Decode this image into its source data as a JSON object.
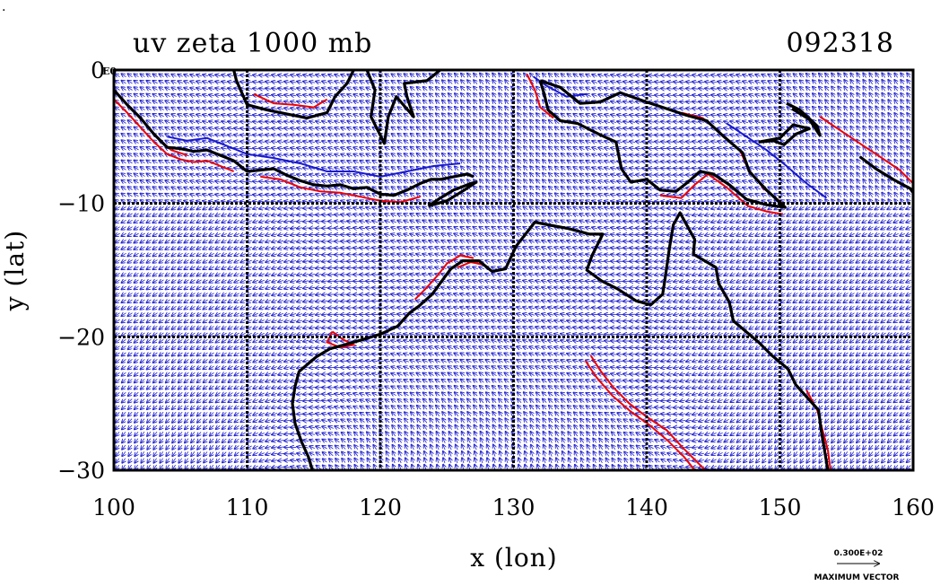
{
  "figure": {
    "title_left": "uv zeta 1000 mb",
    "title_right": "092318",
    "corner_marks": [
      "."
    ]
  },
  "colors": {
    "vector": "#1f1fd0",
    "positive_contour": "#ee0000",
    "negative_contour": "#1a1acc",
    "coast": "#000000",
    "grid": "#000000"
  },
  "vector_key": {
    "magnitude_label": "0.300E+02",
    "caption": "MAXIMUM VECTOR"
  },
  "chart_data": {
    "type": "vector_field",
    "xlabel": "x (lon)",
    "ylabel": "y (lat)",
    "xlim": [
      100,
      160
    ],
    "ylim": [
      -30,
      0
    ],
    "x_ticks": [
      100,
      110,
      120,
      130,
      140,
      150,
      160
    ],
    "y_ticks": [
      {
        "value": 0,
        "label": "0"
      },
      {
        "value": -10,
        "label": "−10"
      },
      {
        "value": -20,
        "label": "−20"
      },
      {
        "value": -30,
        "label": "−30"
      }
    ],
    "y_axis_exponent": "E0",
    "grid": true,
    "coastlines": [
      {
        "name": "sumatra",
        "points": [
          [
            100,
            -1.5
          ],
          [
            101,
            -2.6
          ],
          [
            102,
            -3.6
          ],
          [
            103,
            -4.8
          ],
          [
            104,
            -5.8
          ],
          [
            105,
            -5.9
          ],
          [
            106,
            -6.1
          ],
          [
            107,
            -6.0
          ],
          [
            108,
            -6.4
          ],
          [
            109,
            -6.8
          ],
          [
            110,
            -7.6
          ],
          [
            111,
            -7.5
          ],
          [
            112,
            -7.4
          ],
          [
            113,
            -7.9
          ],
          [
            114,
            -8.3
          ],
          [
            115,
            -8.6
          ],
          [
            116,
            -8.7
          ],
          [
            117,
            -8.6
          ],
          [
            118,
            -8.9
          ],
          [
            119,
            -8.8
          ],
          [
            120,
            -9.3
          ],
          [
            121,
            -9.4
          ],
          [
            122,
            -9.0
          ],
          [
            123,
            -8.5
          ],
          [
            123.8,
            -8.2
          ],
          [
            124.5,
            -8.2
          ],
          [
            125.5,
            -8.0
          ],
          [
            126.5,
            -7.8
          ],
          [
            127,
            -8.0
          ]
        ]
      },
      {
        "name": "borneo",
        "points": [
          [
            109,
            0
          ],
          [
            109.2,
            -0.8
          ],
          [
            110,
            -2.6
          ],
          [
            111.5,
            -3.0
          ],
          [
            113,
            -3.3
          ],
          [
            114.5,
            -3.6
          ],
          [
            116,
            -3.2
          ],
          [
            116.6,
            -2.0
          ],
          [
            117.5,
            -1.0
          ],
          [
            118,
            0
          ]
        ]
      },
      {
        "name": "sulawesi",
        "points": [
          [
            119,
            0
          ],
          [
            119.6,
            -1.5
          ],
          [
            119.3,
            -3.5
          ],
          [
            120.3,
            -5.5
          ],
          [
            120.6,
            -3.5
          ],
          [
            121.2,
            -2.0
          ],
          [
            122.5,
            -3.5
          ],
          [
            122.0,
            -2.0
          ],
          [
            121.8,
            -1.0
          ],
          [
            123.5,
            -0.8
          ],
          [
            124.5,
            0
          ]
        ]
      },
      {
        "name": "timor",
        "points": [
          [
            123.6,
            -10.2
          ],
          [
            124.5,
            -9.6
          ],
          [
            125.5,
            -9.0
          ],
          [
            126.8,
            -8.5
          ],
          [
            127.2,
            -8.4
          ],
          [
            126.3,
            -9.0
          ],
          [
            125.0,
            -9.8
          ],
          [
            123.6,
            -10.2
          ]
        ]
      },
      {
        "name": "new_guinea",
        "points": [
          [
            132,
            -0.8
          ],
          [
            133.5,
            -1.3
          ],
          [
            135,
            -2.5
          ],
          [
            136.5,
            -2.4
          ],
          [
            138,
            -1.7
          ],
          [
            140,
            -2.4
          ],
          [
            141.5,
            -2.9
          ],
          [
            143,
            -3.4
          ],
          [
            144.5,
            -3.8
          ],
          [
            145.8,
            -5.0
          ],
          [
            147.2,
            -6.2
          ],
          [
            147.7,
            -7.6
          ],
          [
            149,
            -9.0
          ],
          [
            150.4,
            -10.3
          ],
          [
            149,
            -10.1
          ],
          [
            147.5,
            -9.7
          ],
          [
            146.2,
            -8.6
          ],
          [
            145,
            -7.8
          ],
          [
            144,
            -7.6
          ],
          [
            143.1,
            -8.4
          ],
          [
            142.2,
            -9.1
          ],
          [
            141,
            -9.0
          ],
          [
            140,
            -8.2
          ],
          [
            138.8,
            -8.4
          ],
          [
            138.1,
            -7.4
          ],
          [
            137.7,
            -5.4
          ],
          [
            136.4,
            -4.8
          ],
          [
            134.8,
            -4.0
          ],
          [
            133.5,
            -3.8
          ],
          [
            132.6,
            -3.0
          ],
          [
            132.3,
            -1.8
          ],
          [
            132,
            -0.8
          ]
        ]
      },
      {
        "name": "bismarck",
        "points": [
          [
            148.4,
            -5.4
          ],
          [
            149.5,
            -5.3
          ],
          [
            150.3,
            -5.6
          ],
          [
            151.2,
            -4.8
          ],
          [
            152.2,
            -4.4
          ],
          [
            151.0,
            -4.1
          ],
          [
            150.0,
            -5.1
          ],
          [
            148.4,
            -5.4
          ]
        ]
      },
      {
        "name": "new_ireland",
        "points": [
          [
            150.5,
            -2.5
          ],
          [
            151.5,
            -3.0
          ],
          [
            152.8,
            -4.2
          ],
          [
            153.0,
            -4.9
          ],
          [
            152.2,
            -3.7
          ],
          [
            150.9,
            -2.9
          ]
        ]
      },
      {
        "name": "solomons",
        "points": [
          [
            156,
            -6.5
          ],
          [
            157.2,
            -7.4
          ],
          [
            158.5,
            -8.2
          ],
          [
            159.8,
            -8.9
          ],
          [
            160,
            -9.2
          ]
        ]
      },
      {
        "name": "australia",
        "points": [
          [
            160,
            -31
          ],
          [
            153.6,
            -30
          ],
          [
            153.1,
            -27
          ],
          [
            152.9,
            -25.5
          ],
          [
            151.2,
            -23.6
          ],
          [
            150.6,
            -22.4
          ],
          [
            149.4,
            -21.4
          ],
          [
            148.4,
            -20.4
          ],
          [
            146.5,
            -18.8
          ],
          [
            146.2,
            -17.4
          ],
          [
            145.4,
            -16.0
          ],
          [
            145.2,
            -14.8
          ],
          [
            143.5,
            -13.8
          ],
          [
            143.6,
            -12.7
          ],
          [
            142.5,
            -10.7
          ],
          [
            142.0,
            -11.6
          ],
          [
            141.7,
            -13.4
          ],
          [
            141.4,
            -15.5
          ],
          [
            141.2,
            -16.8
          ],
          [
            140.3,
            -17.6
          ],
          [
            139.2,
            -17.3
          ],
          [
            137.8,
            -16.4
          ],
          [
            136.6,
            -15.8
          ],
          [
            135.5,
            -15.0
          ],
          [
            135.9,
            -13.9
          ],
          [
            136.7,
            -12.3
          ],
          [
            135.7,
            -12.3
          ],
          [
            134.2,
            -11.9
          ],
          [
            132.6,
            -11.6
          ],
          [
            131.6,
            -11.4
          ],
          [
            130.9,
            -12.3
          ],
          [
            130.2,
            -13.2
          ],
          [
            129.4,
            -14.9
          ],
          [
            128.4,
            -15.1
          ],
          [
            127.4,
            -14.3
          ],
          [
            126.2,
            -14.3
          ],
          [
            125.3,
            -14.9
          ],
          [
            124.7,
            -15.7
          ],
          [
            123.9,
            -16.8
          ],
          [
            122.9,
            -17.7
          ],
          [
            122.2,
            -18.2
          ],
          [
            121.3,
            -19.2
          ],
          [
            120.0,
            -19.8
          ],
          [
            118.7,
            -20.2
          ],
          [
            117.3,
            -20.6
          ],
          [
            116.2,
            -20.9
          ],
          [
            115.2,
            -21.5
          ],
          [
            114.6,
            -22.0
          ],
          [
            113.9,
            -22.6
          ],
          [
            113.6,
            -23.7
          ],
          [
            113.4,
            -25.0
          ],
          [
            113.6,
            -26.5
          ],
          [
            114.1,
            -27.9
          ],
          [
            114.6,
            -29.0
          ],
          [
            114.9,
            -30.0
          ],
          [
            115.2,
            -31
          ]
        ]
      }
    ],
    "contours": [
      {
        "sign": "positive",
        "points": [
          [
            100,
            -2.2
          ],
          [
            101,
            -3.2
          ],
          [
            102,
            -4.3
          ],
          [
            103,
            -5.4
          ],
          [
            104,
            -6.3
          ],
          [
            105,
            -6.7
          ],
          [
            106,
            -6.9
          ],
          [
            107,
            -6.8
          ],
          [
            108,
            -7.2
          ],
          [
            109,
            -7.6
          ]
        ]
      },
      {
        "sign": "positive",
        "points": [
          [
            100.3,
            -1.8
          ],
          [
            101.3,
            -2.9
          ],
          [
            102.3,
            -4.0
          ],
          [
            103.3,
            -5.1
          ],
          [
            104.3,
            -6.0
          ],
          [
            105.5,
            -6.4
          ]
        ]
      },
      {
        "sign": "positive",
        "points": [
          [
            111,
            -8.0
          ],
          [
            112.5,
            -8.2
          ],
          [
            114,
            -8.8
          ],
          [
            115.5,
            -9.1
          ],
          [
            117,
            -9.2
          ],
          [
            118.5,
            -9.5
          ],
          [
            120,
            -9.8
          ],
          [
            121.5,
            -9.9
          ],
          [
            123,
            -9.5
          ]
        ]
      },
      {
        "sign": "negative",
        "points": [
          [
            104,
            -5.0
          ],
          [
            105.5,
            -5.3
          ],
          [
            107,
            -5.1
          ],
          [
            108.5,
            -5.7
          ],
          [
            110,
            -6.3
          ],
          [
            112,
            -6.6
          ],
          [
            114,
            -7.0
          ],
          [
            116,
            -7.6
          ],
          [
            118,
            -7.6
          ],
          [
            120,
            -8.0
          ],
          [
            122,
            -7.6
          ],
          [
            124,
            -7.2
          ],
          [
            126,
            -7.0
          ]
        ]
      },
      {
        "sign": "positive",
        "points": [
          [
            127,
            -14.1
          ],
          [
            126,
            -13.9
          ],
          [
            125,
            -14.5
          ],
          [
            124.3,
            -15.4
          ],
          [
            123.4,
            -16.4
          ],
          [
            122.6,
            -17.2
          ]
        ]
      },
      {
        "sign": "positive",
        "points": [
          [
            127.8,
            -14.6
          ],
          [
            126.8,
            -14.4
          ],
          [
            125.8,
            -14.8
          ]
        ]
      },
      {
        "sign": "positive",
        "points": [
          [
            135.8,
            -21.4
          ],
          [
            136.5,
            -22.5
          ],
          [
            137.5,
            -23.8
          ],
          [
            138.7,
            -25.0
          ],
          [
            140,
            -26.0
          ],
          [
            141.5,
            -27.0
          ],
          [
            142.6,
            -28.2
          ],
          [
            143.8,
            -29.4
          ],
          [
            144.4,
            -30
          ]
        ]
      },
      {
        "sign": "positive",
        "points": [
          [
            135.4,
            -21.8
          ],
          [
            136.2,
            -23.0
          ],
          [
            137.4,
            -24.4
          ],
          [
            138.8,
            -25.6
          ],
          [
            140.2,
            -26.6
          ],
          [
            141.6,
            -27.8
          ],
          [
            142.8,
            -29.0
          ],
          [
            143.6,
            -30
          ]
        ]
      },
      {
        "sign": "positive",
        "points": [
          [
            152.0,
            -24.0
          ],
          [
            152.8,
            -25.5
          ],
          [
            153.2,
            -27.0
          ],
          [
            153.6,
            -28.5
          ],
          [
            153.8,
            -30
          ]
        ]
      },
      {
        "sign": "positive",
        "points": [
          [
            116.4,
            -19.6
          ],
          [
            117.2,
            -20.2
          ],
          [
            118.0,
            -20.6
          ],
          [
            117.0,
            -20.8
          ],
          [
            116.0,
            -20.4
          ],
          [
            116.4,
            -19.6
          ]
        ]
      },
      {
        "sign": "positive",
        "points": [
          [
            142.6,
            -3.2
          ],
          [
            144.2,
            -3.6
          ],
          [
            145.6,
            -4.8
          ],
          [
            147.0,
            -6.0
          ],
          [
            147.6,
            -7.4
          ],
          [
            148.8,
            -8.9
          ],
          [
            150.2,
            -10.0
          ]
        ]
      },
      {
        "sign": "positive",
        "points": [
          [
            141.0,
            -9.4
          ],
          [
            142.6,
            -9.6
          ],
          [
            143.6,
            -8.6
          ],
          [
            144.6,
            -7.8
          ],
          [
            146.0,
            -8.8
          ],
          [
            147.6,
            -10.2
          ],
          [
            149.0,
            -10.6
          ],
          [
            150.2,
            -10.8
          ]
        ]
      },
      {
        "sign": "positive",
        "points": [
          [
            153.0,
            -3.5
          ],
          [
            154.5,
            -4.5
          ],
          [
            156.0,
            -5.5
          ],
          [
            157.5,
            -6.5
          ],
          [
            159.0,
            -7.5
          ],
          [
            160,
            -8.5
          ]
        ]
      },
      {
        "sign": "negative",
        "points": [
          [
            146.0,
            -4.0
          ],
          [
            147.5,
            -5.0
          ],
          [
            149.0,
            -6.0
          ],
          [
            150.5,
            -7.2
          ],
          [
            152.0,
            -8.5
          ],
          [
            153.5,
            -9.6
          ]
        ]
      },
      {
        "sign": "positive",
        "points": [
          [
            110.5,
            -1.8
          ],
          [
            112.0,
            -2.5
          ],
          [
            113.5,
            -2.6
          ],
          [
            115.0,
            -2.8
          ],
          [
            116.0,
            -2.2
          ]
        ]
      },
      {
        "sign": "negative",
        "points": [
          [
            131.5,
            -0.5
          ],
          [
            132.5,
            -1.2
          ],
          [
            134.0,
            -2.0
          ],
          [
            135.5,
            -1.8
          ]
        ]
      },
      {
        "sign": "positive",
        "points": [
          [
            131.0,
            -0.3
          ],
          [
            131.6,
            -1.5
          ],
          [
            132.0,
            -2.8
          ],
          [
            133.0,
            -3.6
          ]
        ]
      }
    ]
  }
}
